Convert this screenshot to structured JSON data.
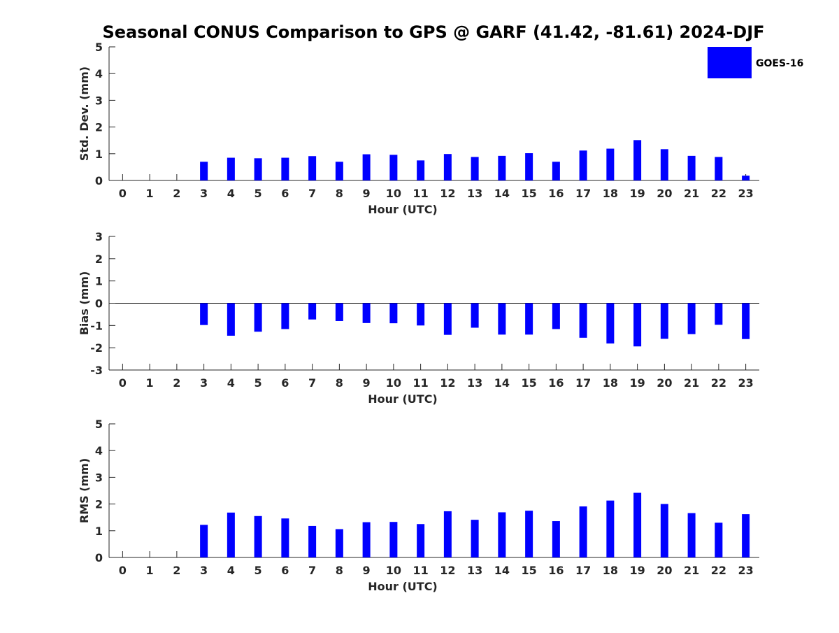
{
  "title": "Seasonal CONUS Comparison to GPS @ GARF (41.42, -81.61) 2024-DJF",
  "colors": {
    "bar": "#0000ff",
    "axis": "#262626",
    "zero_line": "#000000",
    "background": "#ffffff"
  },
  "legend": {
    "label": "GOES-16",
    "placement": "top-right"
  },
  "chart_data": [
    {
      "id": "std",
      "type": "bar",
      "ylabel": "Std. Dev. (mm)",
      "xlabel": "Hour (UTC)",
      "ylim": [
        0,
        5
      ],
      "yticks": [
        0,
        1,
        2,
        3,
        4,
        5
      ],
      "categories": [
        "0",
        "1",
        "2",
        "3",
        "4",
        "5",
        "6",
        "7",
        "8",
        "9",
        "10",
        "11",
        "12",
        "13",
        "14",
        "15",
        "16",
        "17",
        "18",
        "19",
        "20",
        "21",
        "22",
        "23"
      ],
      "series": [
        {
          "name": "GOES-16",
          "values": [
            null,
            null,
            null,
            0.7,
            0.85,
            0.83,
            0.85,
            0.91,
            0.7,
            0.98,
            0.96,
            0.75,
            0.99,
            0.88,
            0.92,
            1.02,
            0.7,
            1.12,
            1.19,
            1.51,
            1.17,
            0.92,
            0.88,
            0.18
          ]
        }
      ]
    },
    {
      "id": "bias",
      "type": "bar",
      "ylabel": "Bias (mm)",
      "xlabel": "Hour (UTC)",
      "ylim": [
        -3,
        3
      ],
      "yticks": [
        -3,
        -2,
        -1,
        0,
        1,
        2,
        3
      ],
      "zero_line": true,
      "categories": [
        "0",
        "1",
        "2",
        "3",
        "4",
        "5",
        "6",
        "7",
        "8",
        "9",
        "10",
        "11",
        "12",
        "13",
        "14",
        "15",
        "16",
        "17",
        "18",
        "19",
        "20",
        "21",
        "22",
        "23"
      ],
      "series": [
        {
          "name": "GOES-16",
          "values": [
            null,
            null,
            null,
            -0.98,
            -1.46,
            -1.28,
            -1.16,
            -0.73,
            -0.8,
            -0.89,
            -0.9,
            -1.0,
            -1.42,
            -1.1,
            -1.41,
            -1.41,
            -1.16,
            -1.55,
            -1.81,
            -1.94,
            -1.6,
            -1.39,
            -0.97,
            -1.61
          ]
        }
      ]
    },
    {
      "id": "rms",
      "type": "bar",
      "ylabel": "RMS (mm)",
      "xlabel": "Hour (UTC)",
      "ylim": [
        0,
        5
      ],
      "yticks": [
        0,
        1,
        2,
        3,
        4,
        5
      ],
      "categories": [
        "0",
        "1",
        "2",
        "3",
        "4",
        "5",
        "6",
        "7",
        "8",
        "9",
        "10",
        "11",
        "12",
        "13",
        "14",
        "15",
        "16",
        "17",
        "18",
        "19",
        "20",
        "21",
        "22",
        "23"
      ],
      "series": [
        {
          "name": "GOES-16",
          "values": [
            null,
            null,
            null,
            1.22,
            1.68,
            1.55,
            1.46,
            1.18,
            1.06,
            1.32,
            1.33,
            1.25,
            1.73,
            1.41,
            1.69,
            1.75,
            1.36,
            1.91,
            2.13,
            2.42,
            2.0,
            1.66,
            1.3,
            1.62
          ]
        }
      ]
    }
  ]
}
